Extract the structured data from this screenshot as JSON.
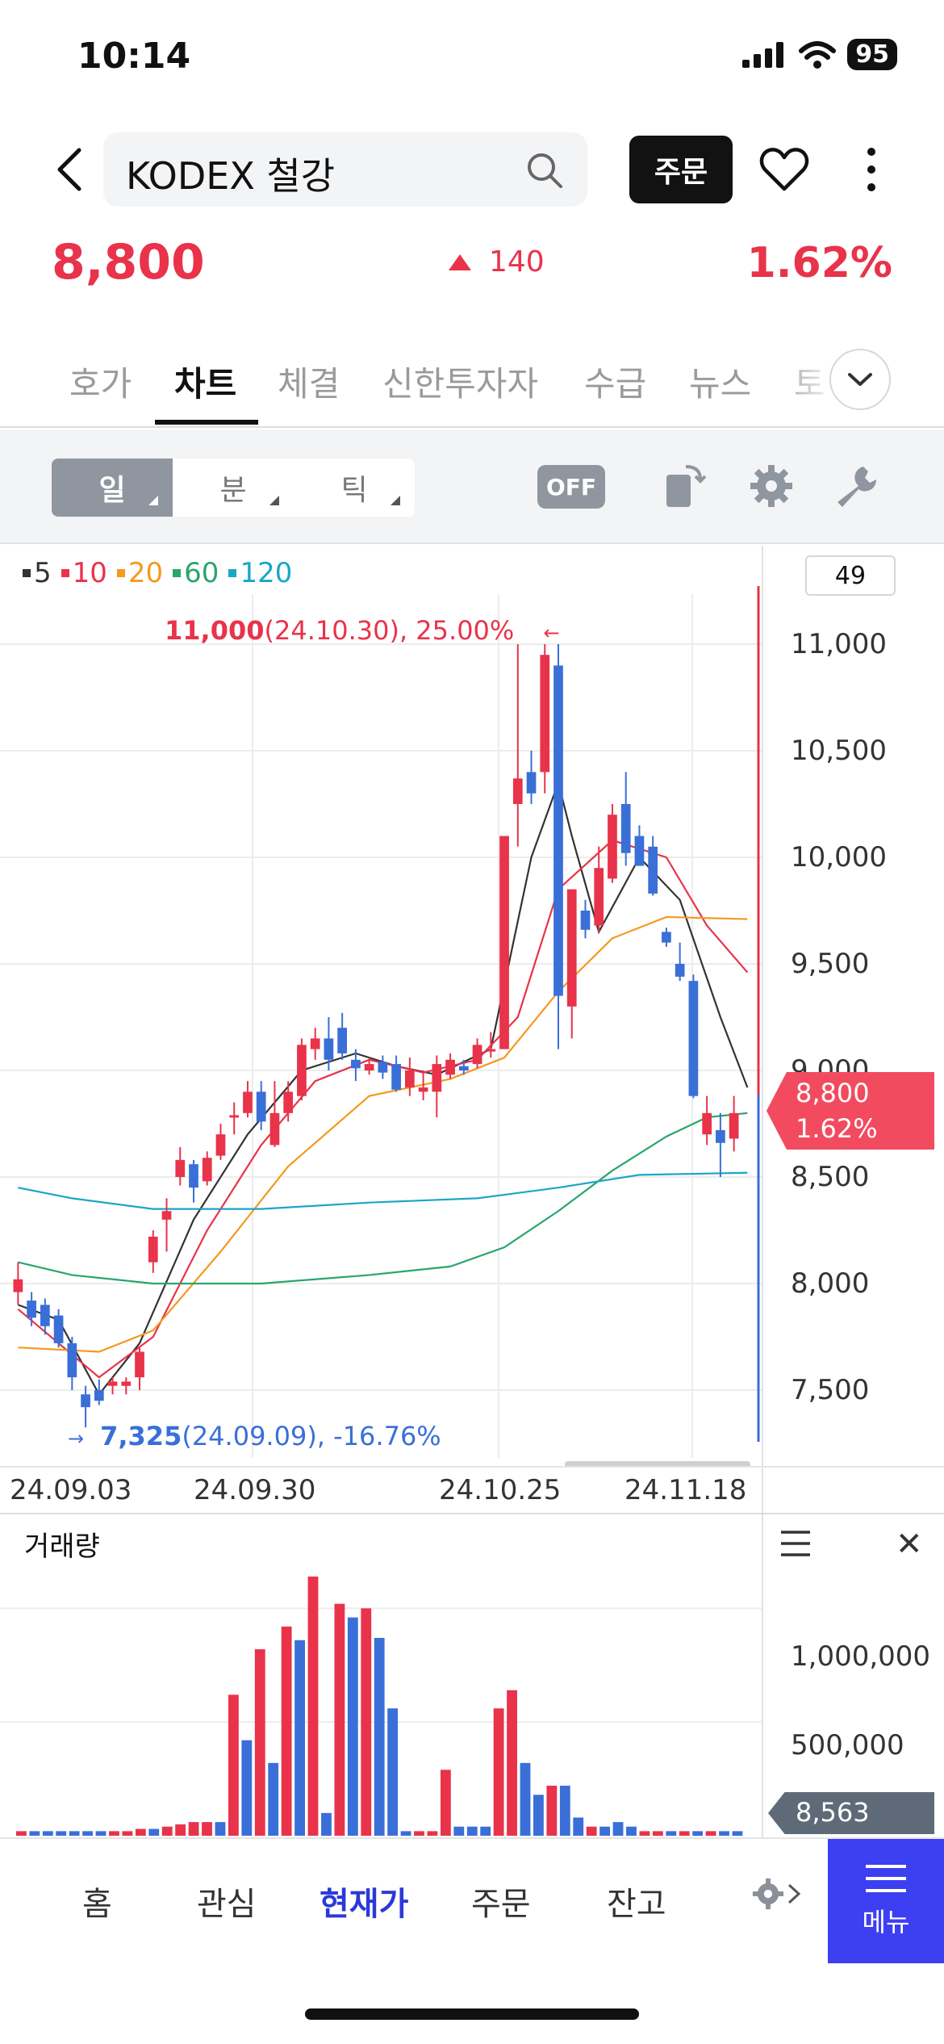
{
  "status_bar": {
    "time": "10:14",
    "battery": "95"
  },
  "header": {
    "search_text": "KODEX 철강",
    "order_label": "주문"
  },
  "price": {
    "current": "8,800",
    "change": "140",
    "change_pct": "1.62%"
  },
  "tabs": [
    "호가",
    "차트",
    "체결",
    "신한투자자",
    "수급",
    "뉴스",
    "토"
  ],
  "toolbar": {
    "periods": [
      "일",
      "분",
      "틱"
    ],
    "off_label": "OFF"
  },
  "chart": {
    "legend": [
      "5",
      "10",
      "20",
      "60",
      "120"
    ],
    "count": "49",
    "high_label": {
      "value": "11,000",
      "detail": "(24.10.30), 25.00%"
    },
    "low_label": {
      "value": "7,325",
      "detail": "(24.09.09), -16.76%"
    },
    "price_tag": {
      "price": "8,800",
      "pct": "1.62%"
    },
    "y_ticks": [
      "11,000",
      "10,500",
      "10,000",
      "9,500",
      "9,000",
      "8,500",
      "8,000",
      "7,500"
    ],
    "x_ticks": [
      "24.09.03",
      "24.09.30",
      "24.10.25",
      "24.11.18"
    ]
  },
  "volume": {
    "title": "거래량",
    "y_ticks": [
      "1,000,000",
      "500,000"
    ],
    "current": "8,563"
  },
  "bottom_nav": [
    "홈",
    "관심",
    "현재가",
    "주문",
    "잔고"
  ],
  "menu_label": "메뉴",
  "colors": {
    "up": "#e8334a",
    "down": "#3a6fd8",
    "accent": "#3c3ff2"
  },
  "chart_data": {
    "type": "candlestick",
    "y_range": [
      7200,
      11100
    ],
    "x_labels": [
      "24.09.03",
      "24.09.30",
      "24.10.25",
      "24.11.18"
    ],
    "candles": [
      {
        "o": 7960,
        "h": 8100,
        "l": 7900,
        "c": 8020
      },
      {
        "o": 7920,
        "h": 7960,
        "l": 7800,
        "c": 7840
      },
      {
        "o": 7900,
        "h": 7930,
        "l": 7760,
        "c": 7800
      },
      {
        "o": 7850,
        "h": 7880,
        "l": 7700,
        "c": 7720
      },
      {
        "o": 7720,
        "h": 7750,
        "l": 7500,
        "c": 7560
      },
      {
        "o": 7480,
        "h": 7520,
        "l": 7325,
        "c": 7420
      },
      {
        "o": 7500,
        "h": 7550,
        "l": 7430,
        "c": 7450
      },
      {
        "o": 7520,
        "h": 7560,
        "l": 7480,
        "c": 7540
      },
      {
        "o": 7520,
        "h": 7560,
        "l": 7480,
        "c": 7540
      },
      {
        "o": 7560,
        "h": 7700,
        "l": 7500,
        "c": 7680
      },
      {
        "o": 8100,
        "h": 8250,
        "l": 8050,
        "c": 8220
      },
      {
        "o": 8300,
        "h": 8400,
        "l": 8150,
        "c": 8340
      },
      {
        "o": 8500,
        "h": 8640,
        "l": 8460,
        "c": 8580
      },
      {
        "o": 8560,
        "h": 8580,
        "l": 8380,
        "c": 8450
      },
      {
        "o": 8480,
        "h": 8620,
        "l": 8460,
        "c": 8590
      },
      {
        "o": 8600,
        "h": 8750,
        "l": 8580,
        "c": 8700
      },
      {
        "o": 8780,
        "h": 8850,
        "l": 8700,
        "c": 8790
      },
      {
        "o": 8800,
        "h": 8950,
        "l": 8780,
        "c": 8900
      },
      {
        "o": 8900,
        "h": 8950,
        "l": 8720,
        "c": 8760
      },
      {
        "o": 8650,
        "h": 8950,
        "l": 8640,
        "c": 8800
      },
      {
        "o": 8800,
        "h": 8950,
        "l": 8760,
        "c": 8900
      },
      {
        "o": 8880,
        "h": 9150,
        "l": 8860,
        "c": 9120
      },
      {
        "o": 9100,
        "h": 9200,
        "l": 9050,
        "c": 9150
      },
      {
        "o": 9150,
        "h": 9250,
        "l": 9000,
        "c": 9050
      },
      {
        "o": 9200,
        "h": 9270,
        "l": 9050,
        "c": 9080
      },
      {
        "o": 9050,
        "h": 9100,
        "l": 8950,
        "c": 9010
      },
      {
        "o": 9000,
        "h": 9060,
        "l": 8980,
        "c": 9030
      },
      {
        "o": 9040,
        "h": 9070,
        "l": 8960,
        "c": 8990
      },
      {
        "o": 9030,
        "h": 9070,
        "l": 8900,
        "c": 8910
      },
      {
        "o": 8920,
        "h": 9060,
        "l": 8880,
        "c": 9000
      },
      {
        "o": 8900,
        "h": 9000,
        "l": 8860,
        "c": 8920
      },
      {
        "o": 8900,
        "h": 9070,
        "l": 8780,
        "c": 9030
      },
      {
        "o": 8980,
        "h": 9080,
        "l": 8960,
        "c": 9050
      },
      {
        "o": 9020,
        "h": 9050,
        "l": 8980,
        "c": 9000
      },
      {
        "o": 9030,
        "h": 9150,
        "l": 9010,
        "c": 9120
      },
      {
        "o": 9100,
        "h": 9180,
        "l": 9060,
        "c": 9100
      },
      {
        "o": 9100,
        "h": 10100,
        "l": 9100,
        "c": 10100
      },
      {
        "o": 10250,
        "h": 11000,
        "l": 10050,
        "c": 10370
      },
      {
        "o": 10400,
        "h": 10500,
        "l": 10250,
        "c": 10300
      },
      {
        "o": 10400,
        "h": 11000,
        "l": 10300,
        "c": 10950
      },
      {
        "o": 10900,
        "h": 11000,
        "l": 9100,
        "c": 9350
      },
      {
        "o": 9300,
        "h": 9850,
        "l": 9150,
        "c": 9850
      },
      {
        "o": 9750,
        "h": 9800,
        "l": 9620,
        "c": 9660
      },
      {
        "o": 9680,
        "h": 10050,
        "l": 9650,
        "c": 9950
      },
      {
        "o": 9900,
        "h": 10250,
        "l": 9880,
        "c": 10200
      },
      {
        "o": 10250,
        "h": 10400,
        "l": 9960,
        "c": 10020
      },
      {
        "o": 10100,
        "h": 10150,
        "l": 9960,
        "c": 9960
      },
      {
        "o": 10050,
        "h": 10100,
        "l": 9820,
        "c": 9830
      },
      {
        "o": 9650,
        "h": 9670,
        "l": 9580,
        "c": 9600
      },
      {
        "o": 9500,
        "h": 9600,
        "l": 9420,
        "c": 9440
      },
      {
        "o": 9420,
        "h": 9450,
        "l": 8870,
        "c": 8880
      },
      {
        "o": 8700,
        "h": 8880,
        "l": 8650,
        "c": 8800
      },
      {
        "o": 8720,
        "h": 8800,
        "l": 8500,
        "c": 8660
      },
      {
        "o": 8680,
        "h": 8880,
        "l": 8620,
        "c": 8800
      }
    ],
    "volume": [
      {
        "v": 20000,
        "up": true
      },
      {
        "v": 20000,
        "up": false
      },
      {
        "v": 20000,
        "up": false
      },
      {
        "v": 20000,
        "up": false
      },
      {
        "v": 20000,
        "up": false
      },
      {
        "v": 20000,
        "up": false
      },
      {
        "v": 20000,
        "up": false
      },
      {
        "v": 20000,
        "up": true
      },
      {
        "v": 20000,
        "up": true
      },
      {
        "v": 30000,
        "up": true
      },
      {
        "v": 30000,
        "up": false
      },
      {
        "v": 40000,
        "up": true
      },
      {
        "v": 50000,
        "up": true
      },
      {
        "v": 60000,
        "up": true
      },
      {
        "v": 60000,
        "up": true
      },
      {
        "v": 60000,
        "up": false
      },
      {
        "v": 620000,
        "up": true
      },
      {
        "v": 420000,
        "up": false
      },
      {
        "v": 820000,
        "up": true
      },
      {
        "v": 320000,
        "up": false
      },
      {
        "v": 920000,
        "up": true
      },
      {
        "v": 860000,
        "up": false
      },
      {
        "v": 1140000,
        "up": true
      },
      {
        "v": 100000,
        "up": false
      },
      {
        "v": 1020000,
        "up": true
      },
      {
        "v": 960000,
        "up": false
      },
      {
        "v": 1000000,
        "up": true
      },
      {
        "v": 870000,
        "up": false
      },
      {
        "v": 560000,
        "up": false
      },
      {
        "v": 20000,
        "up": false
      },
      {
        "v": 20000,
        "up": true
      },
      {
        "v": 20000,
        "up": true
      },
      {
        "v": 290000,
        "up": true
      },
      {
        "v": 40000,
        "up": false
      },
      {
        "v": 40000,
        "up": false
      },
      {
        "v": 40000,
        "up": false
      },
      {
        "v": 560000,
        "up": true
      },
      {
        "v": 640000,
        "up": true
      },
      {
        "v": 320000,
        "up": false
      },
      {
        "v": 180000,
        "up": false
      },
      {
        "v": 220000,
        "up": true
      },
      {
        "v": 220000,
        "up": false
      },
      {
        "v": 80000,
        "up": false
      },
      {
        "v": 40000,
        "up": true
      },
      {
        "v": 40000,
        "up": false
      },
      {
        "v": 60000,
        "up": false
      },
      {
        "v": 40000,
        "up": false
      },
      {
        "v": 20000,
        "up": true
      },
      {
        "v": 20000,
        "up": true
      },
      {
        "v": 20000,
        "up": false
      },
      {
        "v": 20000,
        "up": true
      },
      {
        "v": 20000,
        "up": false
      },
      {
        "v": 20000,
        "up": true
      },
      {
        "v": 20000,
        "up": false
      },
      {
        "v": 20000,
        "up": false
      }
    ],
    "ma_lines": [
      {
        "period": "5",
        "color": "#333333",
        "points": [
          [
            0,
            7900
          ],
          [
            3,
            7830
          ],
          [
            6,
            7480
          ],
          [
            9,
            7720
          ],
          [
            13,
            8300
          ],
          [
            17,
            8700
          ],
          [
            21,
            9000
          ],
          [
            25,
            9080
          ],
          [
            28,
            9020
          ],
          [
            31,
            8980
          ],
          [
            35,
            9100
          ],
          [
            38,
            10000
          ],
          [
            40,
            10350
          ],
          [
            41,
            10100
          ],
          [
            43,
            9650
          ],
          [
            46,
            10000
          ],
          [
            49,
            9800
          ],
          [
            52,
            9250
          ],
          [
            54,
            8920
          ]
        ]
      },
      {
        "period": "10",
        "color": "#e8334a",
        "points": [
          [
            0,
            7880
          ],
          [
            6,
            7560
          ],
          [
            10,
            7750
          ],
          [
            14,
            8250
          ],
          [
            18,
            8650
          ],
          [
            22,
            8950
          ],
          [
            26,
            9050
          ],
          [
            30,
            8990
          ],
          [
            34,
            9050
          ],
          [
            37,
            9250
          ],
          [
            40,
            9850
          ],
          [
            44,
            10080
          ],
          [
            48,
            10000
          ],
          [
            51,
            9680
          ],
          [
            54,
            9460
          ]
        ]
      },
      {
        "period": "20",
        "color": "#f39a1f",
        "points": [
          [
            0,
            7700
          ],
          [
            6,
            7680
          ],
          [
            10,
            7780
          ],
          [
            15,
            8150
          ],
          [
            20,
            8550
          ],
          [
            26,
            8880
          ],
          [
            32,
            8960
          ],
          [
            36,
            9060
          ],
          [
            40,
            9370
          ],
          [
            44,
            9620
          ],
          [
            48,
            9720
          ],
          [
            54,
            9710
          ]
        ]
      },
      {
        "period": "60",
        "color": "#2aa56c",
        "points": [
          [
            0,
            8100
          ],
          [
            4,
            8040
          ],
          [
            10,
            8000
          ],
          [
            18,
            8000
          ],
          [
            26,
            8040
          ],
          [
            32,
            8080
          ],
          [
            36,
            8170
          ],
          [
            40,
            8340
          ],
          [
            44,
            8530
          ],
          [
            48,
            8690
          ],
          [
            51,
            8780
          ],
          [
            54,
            8800
          ]
        ]
      },
      {
        "period": "120",
        "color": "#1aa6c6",
        "points": [
          [
            0,
            8450
          ],
          [
            4,
            8400
          ],
          [
            10,
            8350
          ],
          [
            18,
            8350
          ],
          [
            26,
            8380
          ],
          [
            34,
            8400
          ],
          [
            40,
            8450
          ],
          [
            46,
            8510
          ],
          [
            54,
            8520
          ]
        ]
      }
    ]
  }
}
